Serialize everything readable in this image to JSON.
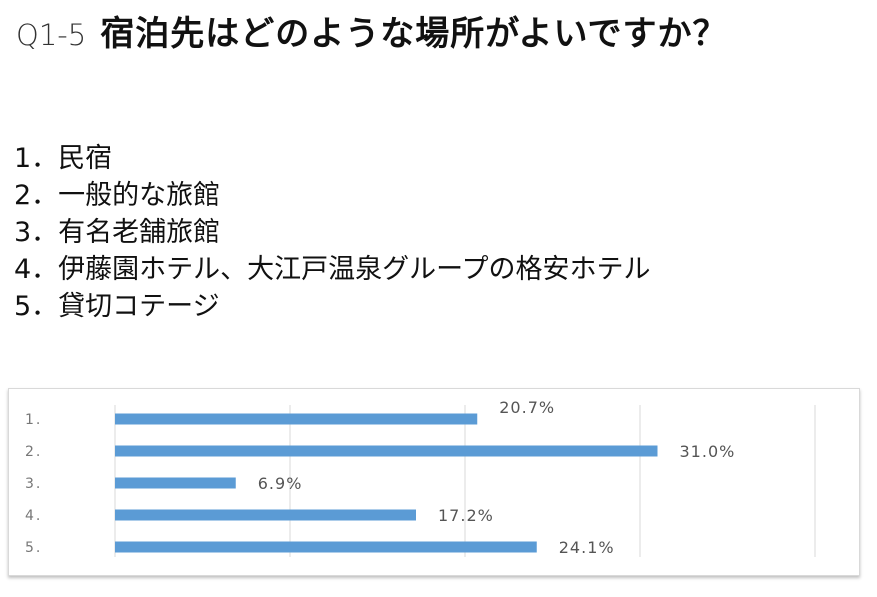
{
  "question": {
    "number": "Q1-5",
    "text": "宿泊先はどのような場所がよいですか？"
  },
  "options": [
    "1．民宿",
    "2．一般的な旅館",
    "3．有名老舗旅館",
    "4．伊藤園ホテル、大江戸温泉グループの格安ホテル",
    "5．貸切コテージ"
  ],
  "chart_data": {
    "type": "bar",
    "orientation": "horizontal",
    "categories": [
      "1.",
      "2.",
      "3.",
      "4.",
      "5."
    ],
    "values": [
      20.7,
      31.0,
      6.9,
      17.2,
      24.1
    ],
    "value_labels": [
      "20.7%",
      "31.0%",
      "6.9%",
      "17.2%",
      "24.1%"
    ],
    "xlim": [
      0,
      40
    ],
    "grid": true,
    "bar_color": "#5b9bd5",
    "gridline_color": "#d9d9d9"
  }
}
